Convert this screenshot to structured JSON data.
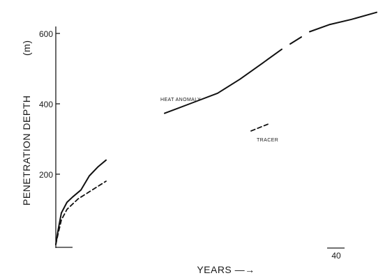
{
  "chart_data": {
    "type": "line",
    "title": "",
    "xlabel": "YEARS —→",
    "ylabel": "PENETRATION DEPTH",
    "ylabel_unit": "(m)",
    "x_tick_labels": [
      "40"
    ],
    "y_ticks": [
      200,
      400,
      600
    ],
    "ylim": [
      0,
      650
    ],
    "grid": false,
    "annotations": [
      "HEAT ANOMALY",
      "TRACER"
    ],
    "series": [
      {
        "style": "solid",
        "segments": [
          {
            "x": [
              0.0,
              0.4,
              1.0,
              2.0,
              3.0,
              4.5,
              6.0,
              7.5,
              9.0
            ],
            "y": [
              0,
              40,
              90,
              120,
              135,
              155,
              195,
              220,
              240
            ]
          },
          {
            "x": [
              19.5,
              24.0,
              29.0,
              33.0,
              37.0,
              40.5
            ],
            "y": [
              373,
              400,
              430,
              470,
              515,
              555
            ]
          },
          {
            "x": [
              42.0,
              44.0
            ],
            "y": [
              570,
              590
            ]
          },
          {
            "x": [
              45.5,
              49.0,
              53.0,
              57.5
            ],
            "y": [
              605,
              625,
              640,
              660
            ]
          }
        ]
      },
      {
        "style": "dashed",
        "segments": [
          {
            "x": [
              0.0,
              0.4,
              1.0,
              2.0,
              4.0,
              6.0,
              9.0
            ],
            "y": [
              0,
              30,
              70,
              100,
              130,
              150,
              180
            ]
          },
          {
            "x": [
              35.0,
              38.0
            ],
            "y": [
              323,
              342
            ]
          }
        ]
      }
    ]
  }
}
